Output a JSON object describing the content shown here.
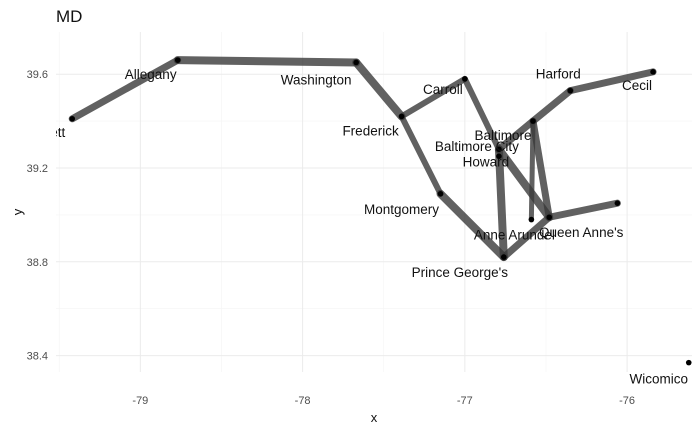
{
  "chart_data": {
    "type": "network",
    "title": "MD",
    "xlabel": "x",
    "ylabel": "y",
    "xlim": [
      -79.52,
      -75.6
    ],
    "ylim": [
      38.33,
      39.78
    ],
    "xticks": [
      -79,
      -78,
      -77,
      -76
    ],
    "yticks": [
      38.4,
      38.8,
      39.2,
      39.6
    ],
    "x_tick_labels": [
      "-79",
      "-78",
      "-77",
      "-76"
    ],
    "y_tick_labels": [
      "38.4",
      "38.8",
      "39.2",
      "39.6"
    ],
    "grid": true,
    "legend": "none",
    "node_color": "#000000",
    "edge_color": "#3a3a3a",
    "nodes": [
      {
        "name": "Garrett",
        "label": "Garrett",
        "x": -79.42,
        "y": 39.41
      },
      {
        "name": "Allegany",
        "label": "Allegany",
        "x": -78.77,
        "y": 39.66
      },
      {
        "name": "Washington",
        "label": "Washington",
        "x": -77.67,
        "y": 39.65
      },
      {
        "name": "Frederick",
        "label": "Frederick",
        "x": -77.39,
        "y": 39.42
      },
      {
        "name": "Carroll",
        "label": "Carroll",
        "x": -77.0,
        "y": 39.58
      },
      {
        "name": "Baltimore",
        "label": "Baltimore",
        "x": -76.58,
        "y": 39.4
      },
      {
        "name": "Harford",
        "label": "Harford",
        "x": -76.35,
        "y": 39.53
      },
      {
        "name": "Cecil",
        "label": "Cecil",
        "x": -75.84,
        "y": 39.61
      },
      {
        "name": "Baltimore City",
        "label": "Baltimore City",
        "x": -76.79,
        "y": 39.28
      },
      {
        "name": "Howard",
        "label": "Howard",
        "x": -76.79,
        "y": 39.25
      },
      {
        "name": "Montgomery",
        "label": "Montgomery",
        "x": -77.15,
        "y": 39.09
      },
      {
        "name": "Anne Arundel",
        "label": "Anne Arundel",
        "x": -76.59,
        "y": 38.98
      },
      {
        "name": "Queen Anne's",
        "label": "Queen Anne's",
        "x": -76.48,
        "y": 38.99
      },
      {
        "name": "Kent",
        "label": "",
        "x": -76.06,
        "y": 39.05
      },
      {
        "name": "Prince George's",
        "label": "Prince George's",
        "x": -76.76,
        "y": 38.82
      },
      {
        "name": "Wicomico",
        "label": "Wicomico",
        "x": -75.62,
        "y": 38.37
      }
    ],
    "edges": [
      [
        "Garrett",
        "Allegany",
        7
      ],
      [
        "Allegany",
        "Washington",
        8
      ],
      [
        "Washington",
        "Frederick",
        8
      ],
      [
        "Frederick",
        "Carroll",
        6
      ],
      [
        "Frederick",
        "Montgomery",
        6
      ],
      [
        "Montgomery",
        "Prince George's",
        8
      ],
      [
        "Carroll",
        "Baltimore City",
        6
      ],
      [
        "Baltimore City",
        "Prince George's",
        8
      ],
      [
        "Baltimore City",
        "Baltimore",
        7
      ],
      [
        "Baltimore City",
        "Queen Anne's",
        8
      ],
      [
        "Baltimore",
        "Queen Anne's",
        7
      ],
      [
        "Baltimore",
        "Anne Arundel",
        5
      ],
      [
        "Prince George's",
        "Queen Anne's",
        7
      ],
      [
        "Baltimore",
        "Harford",
        7
      ],
      [
        "Harford",
        "Cecil",
        7
      ],
      [
        "Queen Anne's",
        "Kent",
        7
      ]
    ]
  }
}
